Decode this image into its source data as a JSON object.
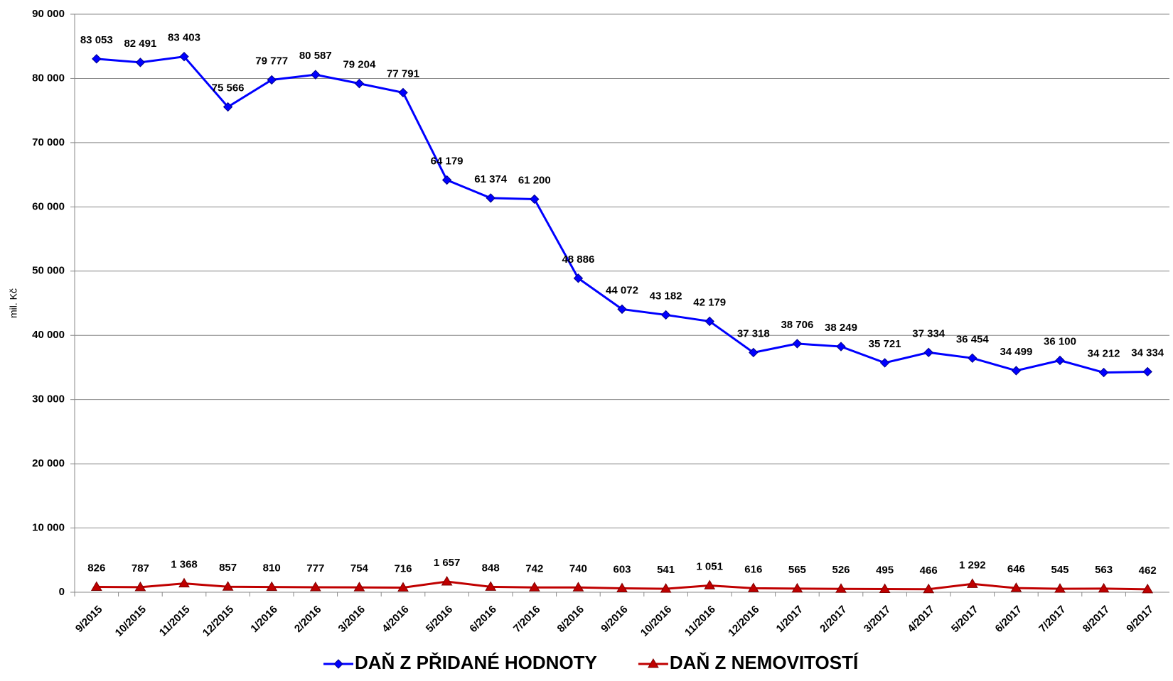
{
  "chart_data": {
    "type": "line",
    "y_label": "mil. Kč",
    "categories": [
      "9/2015",
      "10/2015",
      "11/2015",
      "12/2015",
      "1/2016",
      "2/2016",
      "3/2016",
      "4/2016",
      "5/2016",
      "6/2016",
      "7/2016",
      "8/2016",
      "9/2016",
      "10/2016",
      "11/2016",
      "12/2016",
      "1/2017",
      "2/2017",
      "3/2017",
      "4/2017",
      "5/2017",
      "6/2017",
      "7/2017",
      "8/2017",
      "9/2017"
    ],
    "series": [
      {
        "name": "DAŇ Z PŘIDANÉ HODNOTY",
        "color": "#0000ff",
        "marker": "diamond",
        "values": [
          83053,
          82491,
          83403,
          75566,
          79777,
          80587,
          79204,
          77791,
          64179,
          61374,
          61200,
          48886,
          44072,
          43182,
          42179,
          37318,
          38706,
          38249,
          35721,
          37334,
          36454,
          34499,
          36100,
          34212,
          34334
        ],
        "value_labels": [
          "83 053",
          "82 491",
          "83 403",
          "75 566",
          "79 777",
          "80 587",
          "79 204",
          "77 791",
          "64 179",
          "61 374",
          "61 200",
          "48 886",
          "44 072",
          "43 182",
          "42 179",
          "37 318",
          "38 706",
          "38 249",
          "35 721",
          "37 334",
          "36 454",
          "34 499",
          "36 100",
          "34 212",
          "34 334"
        ]
      },
      {
        "name": "DAŇ Z NEMOVITOSTÍ",
        "color": "#c00000",
        "marker": "triangle",
        "values": [
          826,
          787,
          1368,
          857,
          810,
          777,
          754,
          716,
          1657,
          848,
          742,
          740,
          603,
          541,
          1051,
          616,
          565,
          526,
          495,
          466,
          1292,
          646,
          545,
          563,
          462
        ],
        "value_labels": [
          "826",
          "787",
          "1 368",
          "857",
          "810",
          "777",
          "754",
          "716",
          "1 657",
          "848",
          "742",
          "740",
          "603",
          "541",
          "1 051",
          "616",
          "565",
          "526",
          "495",
          "466",
          "1 292",
          "646",
          "545",
          "563",
          "462"
        ]
      }
    ],
    "ylim": [
      0,
      90000
    ],
    "yticks": [
      0,
      {
        "value": 10000,
        "label": "10 000"
      },
      {
        "value": 20000,
        "label": "20 000"
      },
      {
        "value": 30000,
        "label": "30 000"
      },
      {
        "value": 40000,
        "label": "40 000"
      },
      {
        "value": 50000,
        "label": "50 000"
      },
      {
        "value": 60000,
        "label": "60 000"
      },
      {
        "value": 70000,
        "label": "70 000"
      },
      {
        "value": 80000,
        "label": "80 000"
      },
      {
        "value": 90000,
        "label": "90 000"
      }
    ],
    "grid": true,
    "legend": "bottom"
  }
}
